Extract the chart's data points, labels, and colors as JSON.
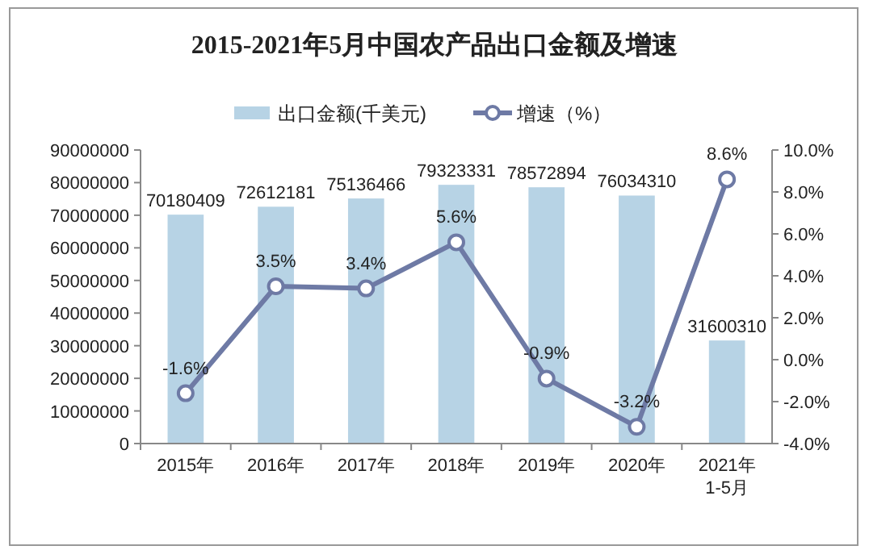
{
  "chart_data": {
    "type": "bar",
    "title": "2015-2021年5月中国农产品出口金额及增速",
    "categories": [
      "2015年",
      "2016年",
      "2017年",
      "2018年",
      "2019年",
      "2020年",
      "2021年\n1-5月"
    ],
    "series": [
      {
        "name": "出口金额(千美元)",
        "color": "#b7d3e5",
        "values": [
          70180409,
          72612181,
          75136466,
          79323331,
          78572894,
          76034310,
          31600310
        ]
      },
      {
        "name": "增速（%）",
        "type": "line",
        "axis": "y2",
        "color": "#6e7aa5",
        "marker": "circle",
        "values": [
          -1.6,
          3.5,
          3.4,
          5.6,
          -0.9,
          -3.2,
          8.6
        ],
        "value_labels": [
          "-1.6%",
          "3.5%",
          "3.4%",
          "5.6%",
          "-0.9%",
          "-3.2%",
          "8.6%"
        ]
      }
    ],
    "data_labels": true,
    "ylim": [
      0,
      90000000
    ],
    "yticks": [
      0,
      10000000,
      20000000,
      30000000,
      40000000,
      50000000,
      60000000,
      70000000,
      80000000,
      90000000
    ],
    "y2lim": [
      -4,
      10
    ],
    "y2ticks": [
      {
        "value": -4,
        "label": "-4.0%"
      },
      {
        "value": -2,
        "label": "-2.0%"
      },
      {
        "value": 0,
        "label": "0.0%"
      },
      {
        "value": 2,
        "label": "2.0%"
      },
      {
        "value": 4,
        "label": "4.0%"
      },
      {
        "value": 6,
        "label": "6.0%"
      },
      {
        "value": 8,
        "label": "8.0%"
      },
      {
        "value": 10,
        "label": "10.0%"
      }
    ],
    "legend": "top",
    "grid": false
  }
}
